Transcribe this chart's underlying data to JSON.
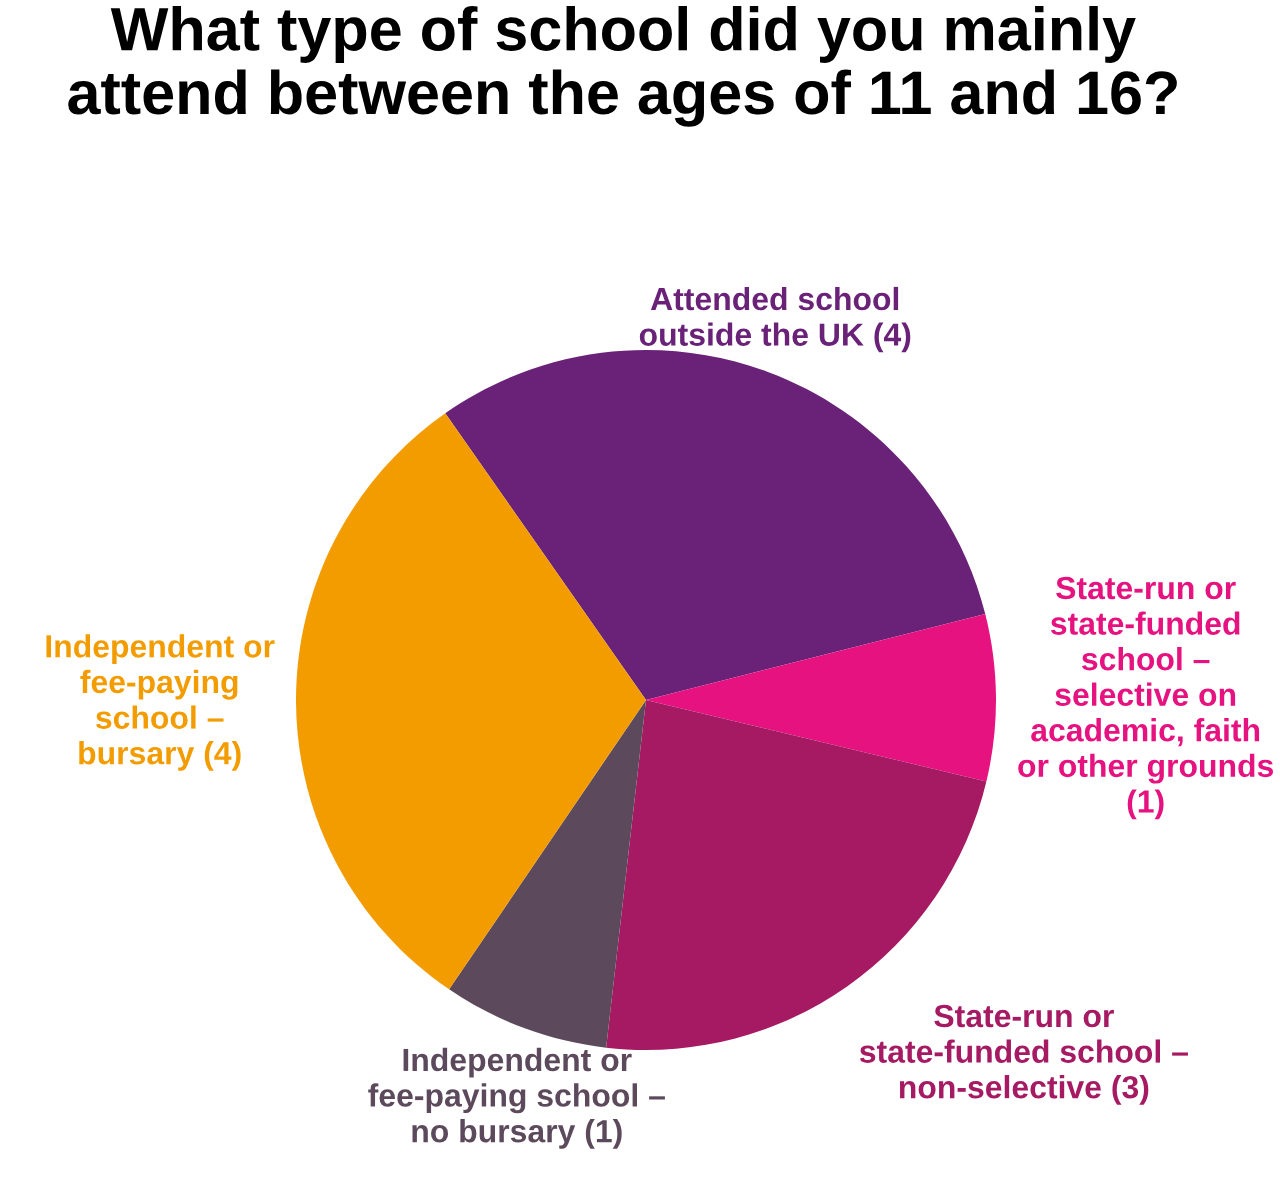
{
  "chart_data": {
    "type": "pie",
    "title": "What type of school did you mainly\nattend between the ages of 11 and 16?",
    "categories": [
      "Attended school\noutside the UK (4)",
      "State-run or\nstate-funded\nschool –\nselective on\nacademic, faith\nor other grounds\n(1)",
      "State-run or\nstate-funded school –\nnon-selective (3)",
      "Independent or\nfee-paying school –\nno bursary (1)",
      "Independent or\nfee-paying\nschool –\nbursary (4)"
    ],
    "values": [
      4,
      1,
      3,
      1,
      4
    ],
    "colors": [
      "#6a2279",
      "#e5127f",
      "#a51a62",
      "#5c4a5c",
      "#f39c00"
    ]
  }
}
